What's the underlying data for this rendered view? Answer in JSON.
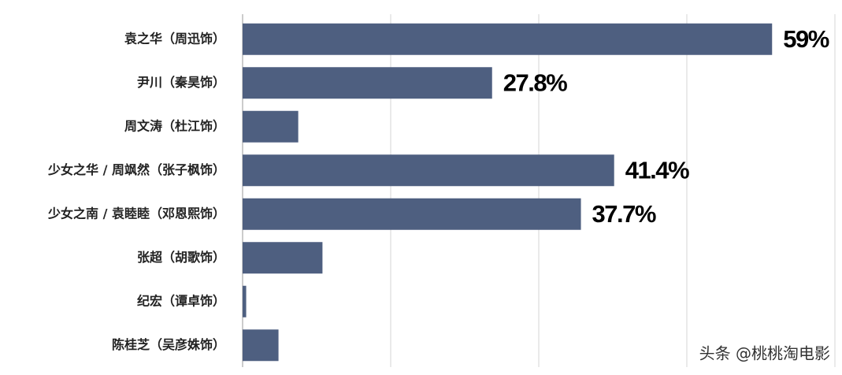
{
  "chart_data": {
    "type": "hbar",
    "categories": [
      "袁之华（周迅饰）",
      "尹川（秦昊饰）",
      "周文涛（杜江饰）",
      "少女之华 / 周飒然（张子枫饰）",
      "少女之南 / 袁睦睦（邓恩熙饰）",
      "张超（胡歌饰）",
      "纪宏（谭卓饰）",
      "陈桂芝（吴彦姝饰）"
    ],
    "values": [
      59,
      27.8,
      6.2,
      41.4,
      37.7,
      8.9,
      0.4,
      4.0
    ],
    "value_labels": [
      "59%",
      "27.8%",
      null,
      "41.4%",
      "37.7%",
      null,
      null,
      null
    ],
    "color": "#4e5f80",
    "xlim": [
      0,
      66
    ],
    "xticks": [
      0,
      16.5,
      33,
      49.5,
      66
    ],
    "grid": true,
    "watermark": "头条 @桃桃淘电影"
  }
}
